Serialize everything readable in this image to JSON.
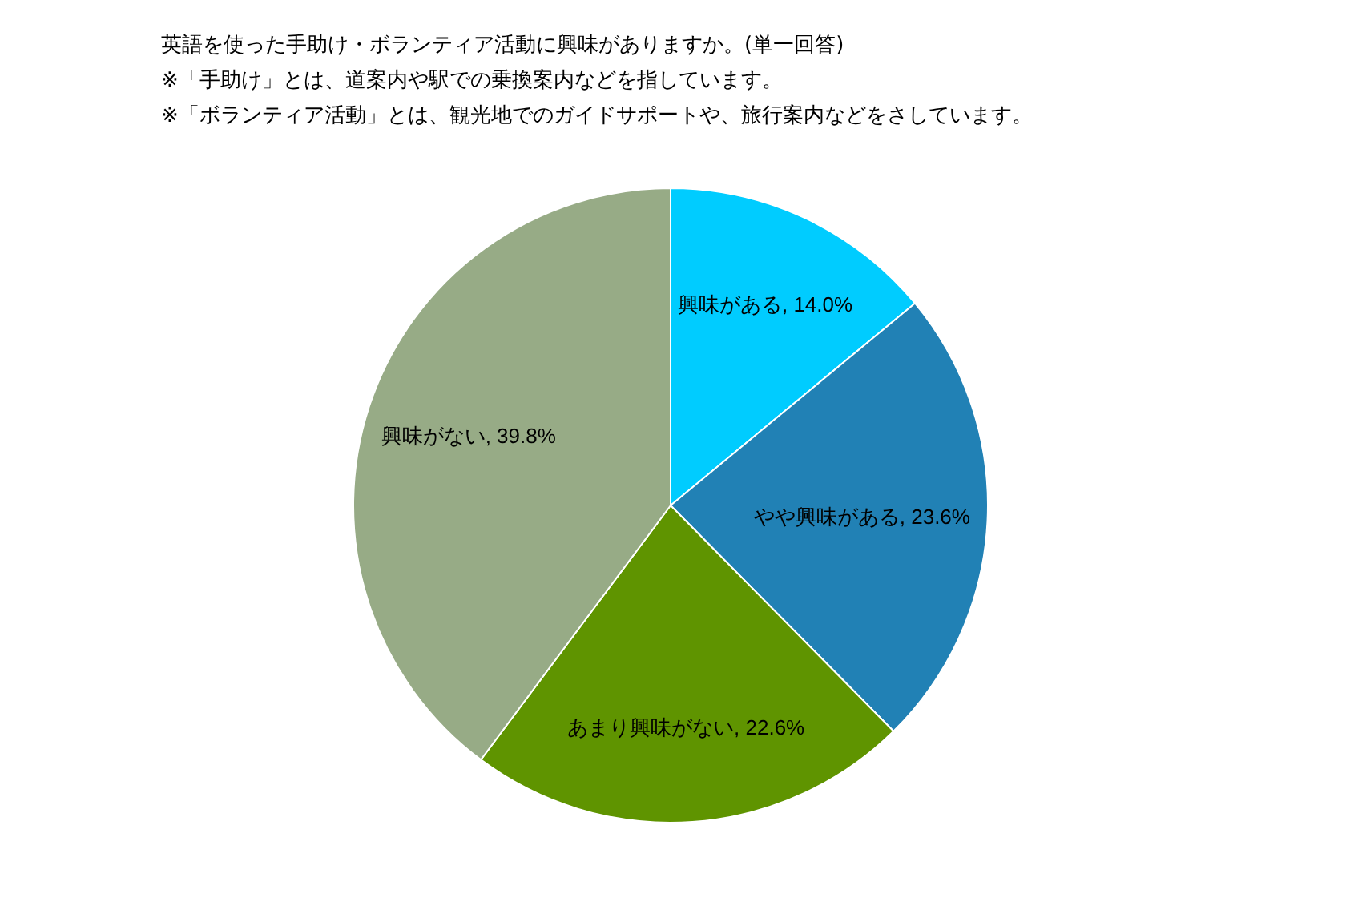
{
  "chart_data": {
    "type": "pie",
    "title": "英語を使った手助け・ボランティア活動に興味がありますか。(単一回答)",
    "annotations": [
      "※「手助け」とは、道案内や駅での乗換案内などを指しています。",
      "※「ボランティア活動」とは、観光地でのガイドサポートや、旅行案内などをさしています。"
    ],
    "categories": [
      "興味がある",
      "やや興味がある",
      "あまり興味がない",
      "興味がない"
    ],
    "values": [
      14.0,
      23.6,
      22.6,
      39.8
    ],
    "value_labels": [
      "14.0%",
      "23.6%",
      "22.6%",
      "39.8%"
    ],
    "colors": [
      "#00ccff",
      "#2181b5",
      "#5f9400",
      "#97ab86"
    ]
  }
}
